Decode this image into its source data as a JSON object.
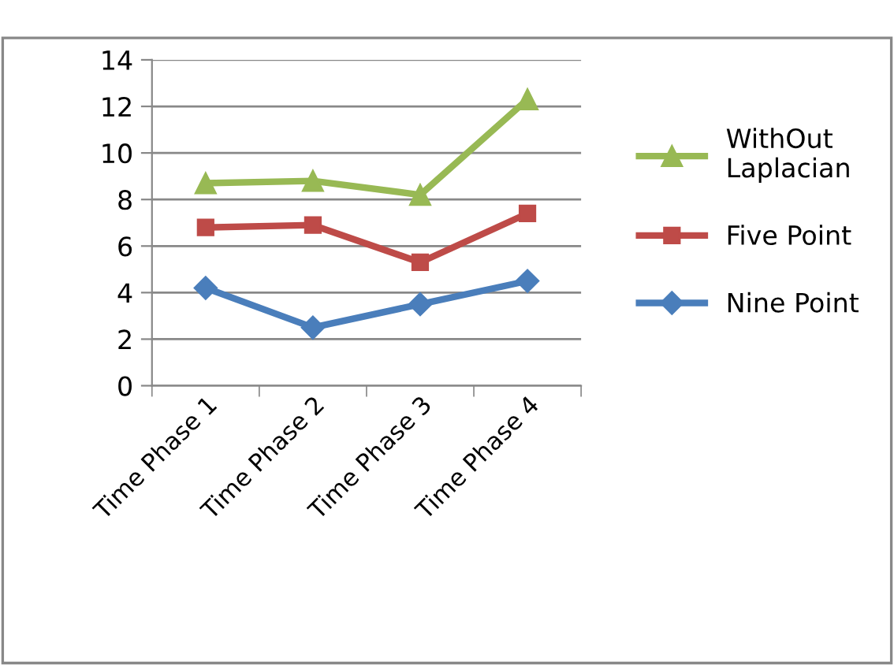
{
  "chart_data": {
    "type": "line",
    "categories": [
      "Time Phase 1",
      "Time Phase 2",
      "Time Phase 3",
      "Time Phase 4"
    ],
    "series": [
      {
        "name": "Nine Point",
        "color": "#4a7ebb",
        "marker": "diamond",
        "values": [
          4.2,
          2.5,
          3.5,
          4.5
        ]
      },
      {
        "name": "Five Point",
        "color": "#be4b48",
        "marker": "square",
        "values": [
          6.8,
          6.9,
          5.3,
          7.4
        ]
      },
      {
        "name": "WithOut Laplacian",
        "color": "#98b954",
        "marker": "triangle",
        "values": [
          8.7,
          8.8,
          8.2,
          12.3
        ]
      }
    ],
    "ylim": [
      0,
      14
    ],
    "yticks": [
      0,
      2,
      4,
      6,
      8,
      10,
      12,
      14
    ],
    "grid": "y",
    "legend": "right"
  }
}
